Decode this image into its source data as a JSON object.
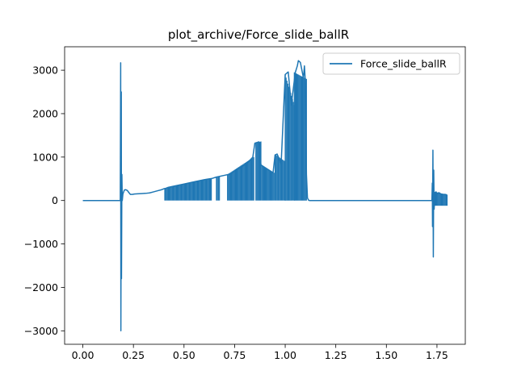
{
  "chart_data": {
    "type": "line",
    "title": "plot_archive/Force_slide_ballR",
    "xlabel": "",
    "ylabel": "",
    "xlim": [
      -0.09,
      1.89
    ],
    "ylim": [
      -3310,
      3540
    ],
    "xticks": [
      0.0,
      0.25,
      0.5,
      0.75,
      1.0,
      1.25,
      1.5,
      1.75
    ],
    "xtick_labels": [
      "0.00",
      "0.25",
      "0.50",
      "0.75",
      "1.00",
      "1.25",
      "1.50",
      "1.75"
    ],
    "yticks": [
      -3000,
      -2000,
      -1000,
      0,
      1000,
      2000,
      3000
    ],
    "ytick_labels": [
      "−3000",
      "−2000",
      "−1000",
      "0",
      "1000",
      "2000",
      "3000"
    ],
    "grid": false,
    "legend_position": "top-right",
    "series": [
      {
        "name": "Force_slide_ballR",
        "color": "#1f77b4",
        "points": [
          [
            0.0,
            0
          ],
          [
            0.18,
            0
          ],
          [
            0.185,
            0
          ],
          [
            0.187,
            3170
          ],
          [
            0.188,
            -3000
          ],
          [
            0.19,
            2500
          ],
          [
            0.191,
            -1800
          ],
          [
            0.193,
            600
          ],
          [
            0.195,
            0
          ],
          [
            0.198,
            150
          ],
          [
            0.205,
            240
          ],
          [
            0.212,
            250
          ],
          [
            0.22,
            230
          ],
          [
            0.228,
            180
          ],
          [
            0.235,
            140
          ],
          [
            0.245,
            140
          ],
          [
            0.255,
            150
          ],
          [
            0.27,
            155
          ],
          [
            0.29,
            160
          ],
          [
            0.31,
            165
          ],
          [
            0.33,
            175
          ],
          [
            0.35,
            200
          ],
          [
            0.37,
            225
          ],
          [
            0.39,
            250
          ],
          [
            0.4,
            270
          ],
          [
            0.41,
            280
          ],
          [
            0.42,
            300
          ],
          [
            0.45,
            330
          ],
          [
            0.5,
            380
          ],
          [
            0.55,
            430
          ],
          [
            0.6,
            480
          ],
          [
            0.64,
            510
          ],
          [
            0.66,
            540
          ],
          [
            0.7,
            580
          ],
          [
            0.72,
            600
          ],
          [
            0.74,
            640
          ],
          [
            0.76,
            720
          ],
          [
            0.78,
            760
          ],
          [
            0.8,
            820
          ],
          [
            0.82,
            900
          ],
          [
            0.84,
            1000
          ],
          [
            0.85,
            1320
          ],
          [
            0.87,
            1350
          ],
          [
            0.88,
            820
          ],
          [
            0.9,
            760
          ],
          [
            0.92,
            700
          ],
          [
            0.94,
            640
          ],
          [
            0.95,
            1050
          ],
          [
            0.96,
            1070
          ],
          [
            0.98,
            850
          ],
          [
            1.0,
            2900
          ],
          [
            1.015,
            2960
          ],
          [
            1.03,
            2200
          ],
          [
            1.05,
            2950
          ],
          [
            1.06,
            3100
          ],
          [
            1.065,
            3220
          ],
          [
            1.075,
            3180
          ],
          [
            1.09,
            2820
          ],
          [
            1.095,
            3100
          ],
          [
            1.1,
            2700
          ],
          [
            1.105,
            600
          ],
          [
            1.11,
            60
          ],
          [
            1.115,
            10
          ],
          [
            1.12,
            0
          ],
          [
            1.5,
            0
          ],
          [
            1.725,
            0
          ],
          [
            1.727,
            400
          ],
          [
            1.728,
            -600
          ],
          [
            1.73,
            1160
          ],
          [
            1.732,
            -1300
          ],
          [
            1.734,
            700
          ],
          [
            1.736,
            -200
          ],
          [
            1.74,
            150
          ],
          [
            1.745,
            200
          ],
          [
            1.75,
            160
          ],
          [
            1.76,
            180
          ],
          [
            1.77,
            150
          ],
          [
            1.78,
            140
          ],
          [
            1.79,
            140
          ],
          [
            1.8,
            130
          ]
        ],
        "oscillation_bands": [
          {
            "x": [
              0.405,
              0.635
            ],
            "y_low": 0,
            "y_high_start": 285,
            "y_high_end": 510
          },
          {
            "x": [
              0.66,
              0.675
            ],
            "y_low": 0,
            "y_high_start": 540,
            "y_high_end": 555
          },
          {
            "x": [
              0.715,
              0.845
            ],
            "y_low": 0,
            "y_high_start": 600,
            "y_high_end": 1000
          },
          {
            "x": [
              0.855,
              0.88
            ],
            "y_low": 0,
            "y_high_start": 1320,
            "y_high_end": 1360
          },
          {
            "x": [
              0.885,
              0.945
            ],
            "y_low": 0,
            "y_high_start": 800,
            "y_high_end": 640
          },
          {
            "x": [
              0.95,
              1.0
            ],
            "y_low": 0,
            "y_high_start": 1060,
            "y_high_end": 900
          },
          {
            "x": [
              1.0,
              1.045
            ],
            "y_low": 0,
            "y_high_start": 2900,
            "y_high_end": 2200
          },
          {
            "x": [
              1.045,
              1.105
            ],
            "y_low": 0,
            "y_high_start": 2950,
            "y_high_end": 2800
          },
          {
            "x": [
              1.74,
              1.8
            ],
            "y_low": -120,
            "y_high_start": 200,
            "y_high_end": 130
          }
        ]
      }
    ]
  }
}
